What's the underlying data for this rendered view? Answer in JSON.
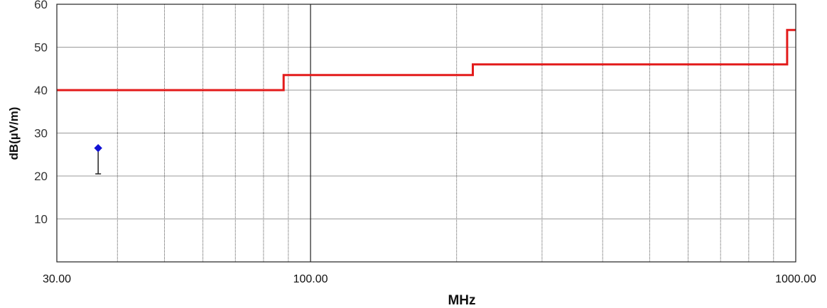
{
  "chart_data": {
    "type": "line",
    "xlabel": "MHz",
    "ylabel": "dB(µV/m)",
    "xscale": "log",
    "xlim": [
      30,
      1000
    ],
    "ylim": [
      0,
      60
    ],
    "x_tick_labels": [
      {
        "value": 30,
        "label": "30.00"
      },
      {
        "value": 100,
        "label": "100.00"
      },
      {
        "value": 1000,
        "label": "1000.00"
      }
    ],
    "y_ticks": [
      {
        "value": 10,
        "label": "10"
      },
      {
        "value": 20,
        "label": "20"
      },
      {
        "value": 30,
        "label": "30"
      },
      {
        "value": 40,
        "label": "40"
      },
      {
        "value": 50,
        "label": "50"
      },
      {
        "value": 60,
        "label": "60"
      }
    ],
    "grid": true,
    "x_major_gridlines": [
      100
    ],
    "x_minor_gridlines": [
      40,
      50,
      60,
      70,
      80,
      90,
      200,
      300,
      400,
      500,
      600,
      700,
      800,
      900
    ],
    "series": [
      {
        "style": "step-line",
        "color": "#e31b1b",
        "points": [
          [
            30,
            40
          ],
          [
            88,
            40
          ],
          [
            88,
            43.5
          ],
          [
            216,
            43.5
          ],
          [
            216,
            46
          ],
          [
            960,
            46
          ],
          [
            960,
            54
          ],
          [
            1000,
            54
          ]
        ]
      },
      {
        "style": "marker-with-stem",
        "color": "#1212d4",
        "stem_color": "#222222",
        "points": [
          {
            "x": 36.5,
            "y": 26.5,
            "stem_bottom": 20.5
          }
        ]
      }
    ]
  }
}
